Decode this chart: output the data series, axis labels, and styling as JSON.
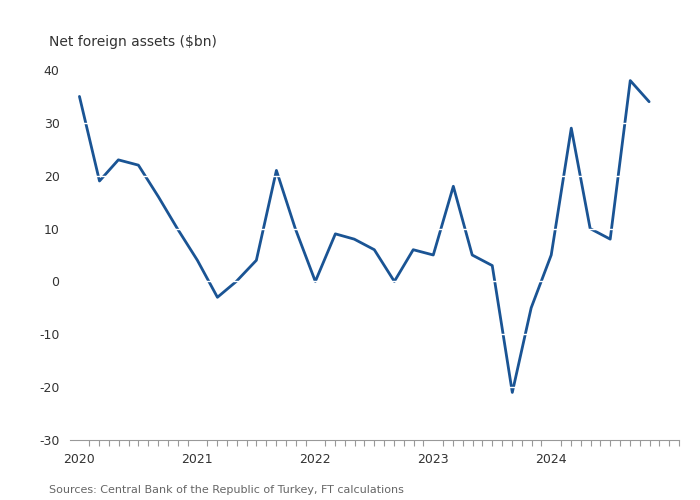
{
  "title": "Net foreign assets ($bn)",
  "source": "Sources: Central Bank of the Republic of Turkey, FT calculations",
  "line_color": "#1a5494",
  "background_color": "#ffffff",
  "ylim": [
    -30,
    40
  ],
  "yticks": [
    -30,
    -20,
    -10,
    0,
    10,
    20,
    30,
    40
  ],
  "x_labels": [
    "2020",
    "2021",
    "2022",
    "2023",
    "2024"
  ],
  "data": [
    [
      2020.0,
      35
    ],
    [
      2020.17,
      19
    ],
    [
      2020.33,
      23
    ],
    [
      2020.5,
      22
    ],
    [
      2020.67,
      16
    ],
    [
      2020.83,
      10
    ],
    [
      2021.0,
      4
    ],
    [
      2021.17,
      -3
    ],
    [
      2021.33,
      0
    ],
    [
      2021.5,
      4
    ],
    [
      2021.67,
      21
    ],
    [
      2021.83,
      10
    ],
    [
      2022.0,
      0
    ],
    [
      2022.17,
      9
    ],
    [
      2022.33,
      8
    ],
    [
      2022.5,
      6
    ],
    [
      2022.67,
      0
    ],
    [
      2022.83,
      6
    ],
    [
      2023.0,
      5
    ],
    [
      2023.17,
      18
    ],
    [
      2023.33,
      5
    ],
    [
      2023.5,
      3
    ],
    [
      2023.67,
      -21
    ],
    [
      2023.83,
      -5
    ],
    [
      2024.0,
      5
    ],
    [
      2024.17,
      29
    ],
    [
      2024.33,
      10
    ],
    [
      2024.5,
      8
    ],
    [
      2024.67,
      38
    ],
    [
      2024.83,
      34
    ]
  ]
}
